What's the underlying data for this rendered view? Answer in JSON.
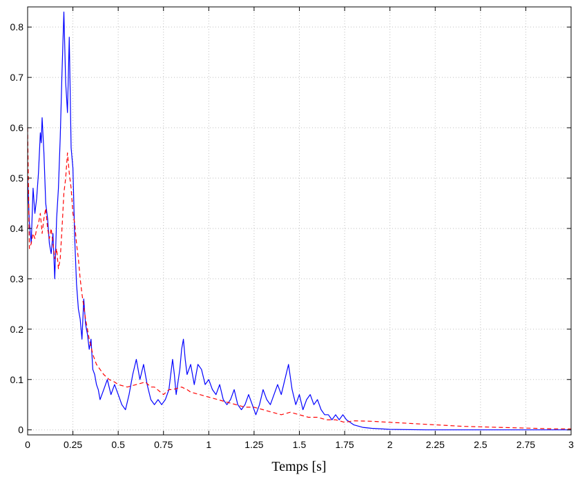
{
  "chart_data": {
    "type": "line",
    "title": "",
    "xlabel": "Temps [s]",
    "ylabel": "",
    "xlim": [
      0,
      3
    ],
    "ylim": [
      -0.01,
      0.84
    ],
    "grid": true,
    "x_ticks": [
      "0",
      "0.25",
      "0.5",
      "0.75",
      "1",
      "1.25",
      "1.5",
      "1.75",
      "2",
      "2.25",
      "2.5",
      "2.75",
      "3"
    ],
    "x_tick_values": [
      0,
      0.25,
      0.5,
      0.75,
      1,
      1.25,
      1.5,
      1.75,
      2,
      2.25,
      2.5,
      2.75,
      3
    ],
    "y_ticks": [
      "0",
      "0.1",
      "0.2",
      "0.3",
      "0.4",
      "0.5",
      "0.6",
      "0.7",
      "0.8"
    ],
    "y_tick_values": [
      0,
      0.1,
      0.2,
      0.3,
      0.4,
      0.5,
      0.6,
      0.7,
      0.8
    ],
    "series": [
      {
        "color": "#0000ff",
        "style": "solid",
        "points": [
          [
            0.0,
            0.5
          ],
          [
            0.01,
            0.41
          ],
          [
            0.02,
            0.37
          ],
          [
            0.03,
            0.48
          ],
          [
            0.04,
            0.43
          ],
          [
            0.05,
            0.46
          ],
          [
            0.06,
            0.51
          ],
          [
            0.07,
            0.59
          ],
          [
            0.075,
            0.57
          ],
          [
            0.08,
            0.62
          ],
          [
            0.09,
            0.55
          ],
          [
            0.1,
            0.45
          ],
          [
            0.11,
            0.42
          ],
          [
            0.12,
            0.37
          ],
          [
            0.13,
            0.35
          ],
          [
            0.14,
            0.39
          ],
          [
            0.15,
            0.3
          ],
          [
            0.16,
            0.42
          ],
          [
            0.17,
            0.48
          ],
          [
            0.18,
            0.58
          ],
          [
            0.19,
            0.71
          ],
          [
            0.2,
            0.83
          ],
          [
            0.21,
            0.69
          ],
          [
            0.22,
            0.63
          ],
          [
            0.23,
            0.78
          ],
          [
            0.24,
            0.56
          ],
          [
            0.25,
            0.52
          ],
          [
            0.26,
            0.38
          ],
          [
            0.27,
            0.29
          ],
          [
            0.28,
            0.24
          ],
          [
            0.29,
            0.22
          ],
          [
            0.3,
            0.18
          ],
          [
            0.31,
            0.26
          ],
          [
            0.32,
            0.21
          ],
          [
            0.33,
            0.19
          ],
          [
            0.34,
            0.16
          ],
          [
            0.35,
            0.18
          ],
          [
            0.36,
            0.12
          ],
          [
            0.37,
            0.11
          ],
          [
            0.38,
            0.09
          ],
          [
            0.39,
            0.08
          ],
          [
            0.4,
            0.06
          ],
          [
            0.42,
            0.08
          ],
          [
            0.44,
            0.1
          ],
          [
            0.46,
            0.07
          ],
          [
            0.48,
            0.09
          ],
          [
            0.5,
            0.07
          ],
          [
            0.52,
            0.05
          ],
          [
            0.54,
            0.04
          ],
          [
            0.56,
            0.07
          ],
          [
            0.58,
            0.11
          ],
          [
            0.6,
            0.14
          ],
          [
            0.62,
            0.1
          ],
          [
            0.64,
            0.13
          ],
          [
            0.66,
            0.09
          ],
          [
            0.68,
            0.06
          ],
          [
            0.7,
            0.05
          ],
          [
            0.72,
            0.06
          ],
          [
            0.74,
            0.05
          ],
          [
            0.76,
            0.06
          ],
          [
            0.78,
            0.08
          ],
          [
            0.8,
            0.14
          ],
          [
            0.81,
            0.11
          ],
          [
            0.82,
            0.07
          ],
          [
            0.84,
            0.12
          ],
          [
            0.85,
            0.16
          ],
          [
            0.86,
            0.18
          ],
          [
            0.87,
            0.14
          ],
          [
            0.88,
            0.11
          ],
          [
            0.9,
            0.13
          ],
          [
            0.92,
            0.09
          ],
          [
            0.94,
            0.13
          ],
          [
            0.96,
            0.12
          ],
          [
            0.98,
            0.09
          ],
          [
            1.0,
            0.1
          ],
          [
            1.02,
            0.08
          ],
          [
            1.04,
            0.07
          ],
          [
            1.06,
            0.09
          ],
          [
            1.08,
            0.06
          ],
          [
            1.1,
            0.05
          ],
          [
            1.12,
            0.06
          ],
          [
            1.14,
            0.08
          ],
          [
            1.16,
            0.05
          ],
          [
            1.18,
            0.04
          ],
          [
            1.2,
            0.05
          ],
          [
            1.22,
            0.07
          ],
          [
            1.24,
            0.05
          ],
          [
            1.26,
            0.03
          ],
          [
            1.28,
            0.05
          ],
          [
            1.3,
            0.08
          ],
          [
            1.32,
            0.06
          ],
          [
            1.34,
            0.05
          ],
          [
            1.36,
            0.07
          ],
          [
            1.38,
            0.09
          ],
          [
            1.4,
            0.07
          ],
          [
            1.42,
            0.1
          ],
          [
            1.44,
            0.13
          ],
          [
            1.46,
            0.08
          ],
          [
            1.48,
            0.05
          ],
          [
            1.5,
            0.07
          ],
          [
            1.52,
            0.04
          ],
          [
            1.54,
            0.06
          ],
          [
            1.56,
            0.07
          ],
          [
            1.58,
            0.05
          ],
          [
            1.6,
            0.06
          ],
          [
            1.62,
            0.04
          ],
          [
            1.64,
            0.03
          ],
          [
            1.66,
            0.03
          ],
          [
            1.68,
            0.02
          ],
          [
            1.7,
            0.03
          ],
          [
            1.72,
            0.02
          ],
          [
            1.74,
            0.03
          ],
          [
            1.76,
            0.02
          ],
          [
            1.8,
            0.01
          ],
          [
            1.85,
            0.005
          ],
          [
            1.9,
            0.003
          ],
          [
            2.0,
            0.001
          ],
          [
            2.2,
            0.0
          ],
          [
            2.5,
            0.0
          ],
          [
            2.75,
            0.0
          ],
          [
            3.0,
            0.0
          ]
        ]
      },
      {
        "color": "#ff0000",
        "style": "dashed",
        "points": [
          [
            0.0,
            0.6
          ],
          [
            0.01,
            0.36
          ],
          [
            0.02,
            0.37
          ],
          [
            0.03,
            0.39
          ],
          [
            0.04,
            0.38
          ],
          [
            0.05,
            0.4
          ],
          [
            0.06,
            0.41
          ],
          [
            0.07,
            0.43
          ],
          [
            0.08,
            0.39
          ],
          [
            0.09,
            0.42
          ],
          [
            0.1,
            0.44
          ],
          [
            0.11,
            0.4
          ],
          [
            0.12,
            0.38
          ],
          [
            0.13,
            0.4
          ],
          [
            0.14,
            0.37
          ],
          [
            0.15,
            0.34
          ],
          [
            0.16,
            0.36
          ],
          [
            0.17,
            0.32
          ],
          [
            0.18,
            0.34
          ],
          [
            0.19,
            0.4
          ],
          [
            0.2,
            0.47
          ],
          [
            0.21,
            0.5
          ],
          [
            0.22,
            0.55
          ],
          [
            0.23,
            0.51
          ],
          [
            0.24,
            0.48
          ],
          [
            0.25,
            0.43
          ],
          [
            0.26,
            0.41
          ],
          [
            0.27,
            0.37
          ],
          [
            0.28,
            0.34
          ],
          [
            0.29,
            0.3
          ],
          [
            0.3,
            0.27
          ],
          [
            0.32,
            0.22
          ],
          [
            0.34,
            0.18
          ],
          [
            0.36,
            0.15
          ],
          [
            0.38,
            0.13
          ],
          [
            0.4,
            0.12
          ],
          [
            0.42,
            0.11
          ],
          [
            0.45,
            0.1
          ],
          [
            0.48,
            0.095
          ],
          [
            0.5,
            0.09
          ],
          [
            0.55,
            0.085
          ],
          [
            0.6,
            0.09
          ],
          [
            0.65,
            0.095
          ],
          [
            0.68,
            0.085
          ],
          [
            0.7,
            0.085
          ],
          [
            0.75,
            0.07
          ],
          [
            0.78,
            0.08
          ],
          [
            0.8,
            0.08
          ],
          [
            0.85,
            0.085
          ],
          [
            0.88,
            0.08
          ],
          [
            0.9,
            0.075
          ],
          [
            0.95,
            0.07
          ],
          [
            1.0,
            0.065
          ],
          [
            1.05,
            0.06
          ],
          [
            1.1,
            0.055
          ],
          [
            1.15,
            0.05
          ],
          [
            1.2,
            0.045
          ],
          [
            1.25,
            0.045
          ],
          [
            1.3,
            0.04
          ],
          [
            1.35,
            0.035
          ],
          [
            1.4,
            0.03
          ],
          [
            1.45,
            0.035
          ],
          [
            1.5,
            0.03
          ],
          [
            1.55,
            0.025
          ],
          [
            1.6,
            0.025
          ],
          [
            1.65,
            0.02
          ],
          [
            1.7,
            0.02
          ],
          [
            1.75,
            0.015
          ],
          [
            1.8,
            0.018
          ],
          [
            1.9,
            0.017
          ],
          [
            2.0,
            0.015
          ],
          [
            2.1,
            0.013
          ],
          [
            2.2,
            0.011
          ],
          [
            2.3,
            0.009
          ],
          [
            2.4,
            0.007
          ],
          [
            2.5,
            0.006
          ],
          [
            2.6,
            0.005
          ],
          [
            2.7,
            0.004
          ],
          [
            2.8,
            0.003
          ],
          [
            2.9,
            0.002
          ],
          [
            3.0,
            0.002
          ]
        ]
      }
    ]
  }
}
